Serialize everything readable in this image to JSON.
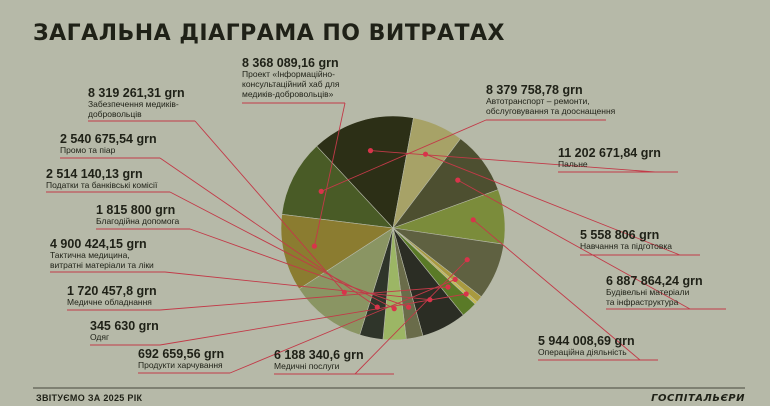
{
  "chart_data": {
    "type": "pie",
    "title": "ЗАГАЛЬНА ДІАГРАМА ПО ВИТРАТАХ",
    "slices": [
      {
        "value_label": "8 379 758,78 grn",
        "label": "Автотранспорт – ремонти, обслуговування та дооснащення",
        "value": 8379758.78,
        "color": "#495b26"
      },
      {
        "value_label": "11 202 671,84 grn",
        "label": "Пальне",
        "value": 11202671.84,
        "color": "#2c2f16"
      },
      {
        "value_label": "5 558 806 grn",
        "label": "Навчання та підготовка",
        "value": 5558806,
        "color": "#a7a267"
      },
      {
        "value_label": "6 887 864,24 grn",
        "label": "Будівельні матеріали та інфраструктура",
        "value": 6887864.24,
        "color": "#4d4f30"
      },
      {
        "value_label": "5 944 008,69 grn",
        "label": "Операційна діяльність",
        "value": 5944008.69,
        "color": "#7b8c3b"
      },
      {
        "value_label": "6 188 340,6 grn",
        "label": "Медичні послуги",
        "value": 6188340.6,
        "color": "#5f6141"
      },
      {
        "value_label": "692 659,56 grn",
        "label": "Продукти харчування",
        "value": 692659.56,
        "color": "#a99a3f"
      },
      {
        "value_label": "345 630 grn",
        "label": "Одяг",
        "value": 345630,
        "color": "#c7bb55"
      },
      {
        "value_label": "1 720 457,8 grn",
        "label": "Медичне обладнання",
        "value": 1720457.8,
        "color": "#5a7a27"
      },
      {
        "value_label": "4 900 424,15 grn",
        "label": "Тактична медицина, витратні матеріали та ліки",
        "value": 4900424.15,
        "color": "#2b2d24"
      },
      {
        "value_label": "1 815 800 grn",
        "label": "Благодійна допомога",
        "value": 1815800,
        "color": "#6a6c4a"
      },
      {
        "value_label": "2 514 140,13 grn",
        "label": "Податки та банківські комісії",
        "value": 2514140.13,
        "color": "#9cb665"
      },
      {
        "value_label": "2 540 675,54 grn",
        "label": "Промо та піар",
        "value": 2540675.54,
        "color": "#2f352a"
      },
      {
        "value_label": "8 319 261,31 grn",
        "label": "Забезпечення медиків-добровольців",
        "value": 8319261.31,
        "color": "#8a9563"
      },
      {
        "value_label": "8 368 089,16 grn",
        "label": "Проект «Інформаційно-консультаційний хаб для медиків-добровольців»",
        "value": 8368089.16,
        "color": "#8b7c30"
      }
    ],
    "legend": "none"
  },
  "footer": {
    "left": "ЗВІТУЄМО ЗА 2025 РІК",
    "right": "ГОСПІТАЛЬЄРИ"
  },
  "colors": {
    "background": "#b6b9a8",
    "text": "#1f2117",
    "leader_line": "#c23a48",
    "dot": "#d8344a"
  }
}
